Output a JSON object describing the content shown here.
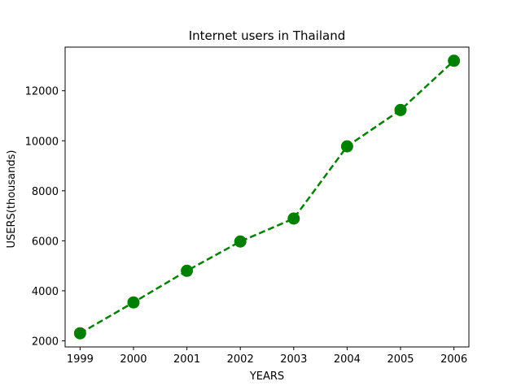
{
  "chart_data": {
    "type": "line",
    "title": "Internet users in Thailand",
    "xlabel": "YEARS",
    "ylabel": "USERS(thousands)",
    "x": [
      "1999",
      "2000",
      "2001",
      "2002",
      "2003",
      "2004",
      "2005",
      "2006"
    ],
    "series": [
      {
        "values": [
          2300,
          3536,
          4800,
          5971,
          6889,
          9777,
          11230,
          13200
        ]
      }
    ],
    "xlim": [
      1998.72,
      2006.28
    ],
    "ylim": [
      1755,
      13745
    ],
    "yticks": [
      2000,
      4000,
      6000,
      8000,
      10000,
      12000
    ],
    "xticks": [
      1999,
      2000,
      2001,
      2002,
      2003,
      2004,
      2005,
      2006
    ],
    "grid": false,
    "legend": "none",
    "line_style": "dashed",
    "marker": "circle",
    "color": "#008000"
  }
}
